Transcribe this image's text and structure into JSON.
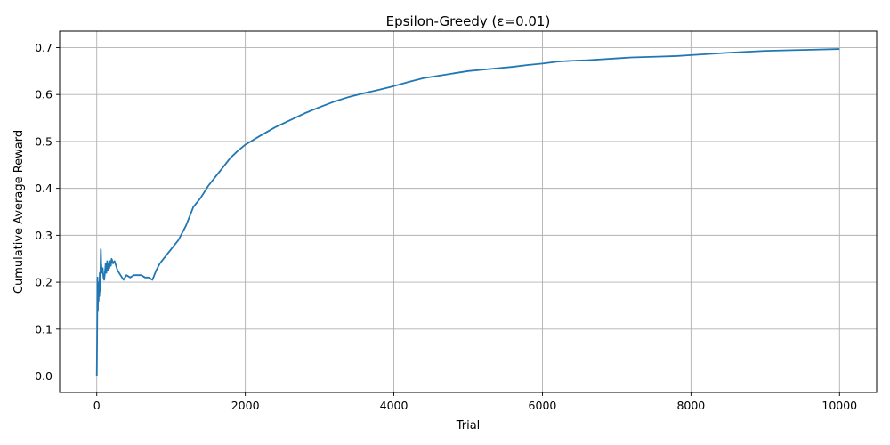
{
  "chart_data": {
    "type": "line",
    "title": "Epsilon-Greedy (ε=0.01)",
    "xlabel": "Trial",
    "ylabel": "Cumulative Average Reward",
    "xlim": [
      -500,
      10500
    ],
    "ylim": [
      -0.035,
      0.735
    ],
    "xticks": [
      0,
      2000,
      4000,
      6000,
      8000,
      10000
    ],
    "yticks": [
      0.0,
      0.1,
      0.2,
      0.3,
      0.4,
      0.5,
      0.6,
      0.7
    ],
    "xtick_labels": [
      "0",
      "2000",
      "4000",
      "6000",
      "8000",
      "10000"
    ],
    "ytick_labels": [
      "0.0",
      "0.1",
      "0.2",
      "0.3",
      "0.4",
      "0.5",
      "0.6",
      "0.7"
    ],
    "grid": true,
    "line_color": "#1f77b4",
    "series": [
      {
        "x": [
          0,
          5,
          10,
          15,
          20,
          25,
          30,
          35,
          40,
          45,
          50,
          55,
          60,
          70,
          80,
          90,
          100,
          110,
          120,
          130,
          140,
          150,
          160,
          170,
          180,
          190,
          200,
          220,
          240,
          260,
          280,
          300,
          320,
          340,
          360,
          380,
          400,
          450,
          500,
          550,
          600,
          650,
          700,
          750,
          800,
          850,
          900,
          1000,
          1100,
          1200,
          1300,
          1400,
          1500,
          1600,
          1700,
          1800,
          1900,
          2000,
          2200,
          2400,
          2600,
          2800,
          3000,
          3200,
          3400,
          3600,
          3800,
          4000,
          4200,
          4400,
          4600,
          4800,
          5000,
          5200,
          5400,
          5600,
          5800,
          6000,
          6200,
          6400,
          6600,
          6800,
          7000,
          7200,
          7400,
          7600,
          7800,
          8000,
          8500,
          9000,
          9500,
          10000
        ],
        "y": [
          0.0,
          0.09,
          0.21,
          0.14,
          0.2,
          0.16,
          0.2,
          0.17,
          0.22,
          0.18,
          0.23,
          0.27,
          0.24,
          0.22,
          0.23,
          0.21,
          0.205,
          0.22,
          0.24,
          0.22,
          0.245,
          0.225,
          0.24,
          0.23,
          0.245,
          0.235,
          0.25,
          0.24,
          0.245,
          0.235,
          0.225,
          0.22,
          0.215,
          0.21,
          0.205,
          0.21,
          0.215,
          0.21,
          0.215,
          0.215,
          0.215,
          0.21,
          0.21,
          0.205,
          0.225,
          0.24,
          0.25,
          0.27,
          0.29,
          0.32,
          0.36,
          0.38,
          0.405,
          0.425,
          0.445,
          0.465,
          0.48,
          0.493,
          0.512,
          0.53,
          0.545,
          0.56,
          0.573,
          0.585,
          0.595,
          0.603,
          0.61,
          0.618,
          0.627,
          0.635,
          0.64,
          0.645,
          0.65,
          0.653,
          0.656,
          0.659,
          0.663,
          0.666,
          0.67,
          0.672,
          0.673,
          0.675,
          0.677,
          0.679,
          0.68,
          0.681,
          0.682,
          0.684,
          0.689,
          0.693,
          0.695,
          0.697
        ]
      }
    ]
  }
}
